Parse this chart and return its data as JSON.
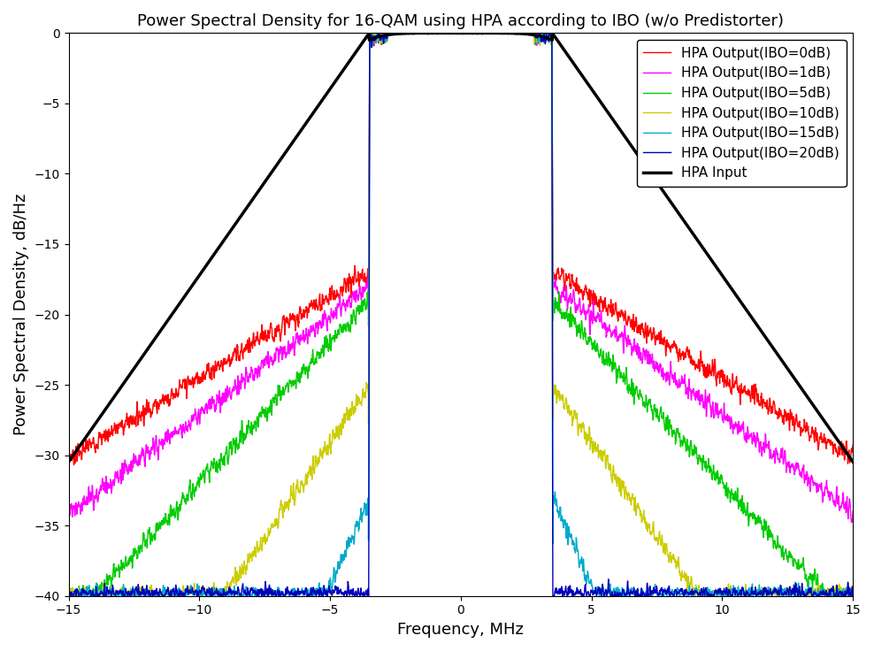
{
  "title": "Power Spectral Density for 16-QAM using HPA according to IBO (w/o Predistorter)",
  "xlabel": "Frequency, MHz",
  "ylabel": "Power Spectral Density, dB/Hz",
  "xlim": [
    -15,
    15
  ],
  "ylim": [
    -40,
    0
  ],
  "yticks": [
    0,
    -5,
    -10,
    -15,
    -20,
    -25,
    -30,
    -35,
    -40
  ],
  "xticks": [
    -15,
    -10,
    -5,
    0,
    5,
    10,
    15
  ],
  "colors": {
    "ibo0": "#ff0000",
    "ibo1": "#ff00ff",
    "ibo5": "#00cc00",
    "ibo10": "#cccc00",
    "ibo15": "#00aacc",
    "ibo20": "#0000bb",
    "input": "#000000"
  },
  "legend_labels": [
    "HPA Output(IBO=0dB)",
    "HPA Output(IBO=1dB)",
    "HPA Output(IBO=5dB)",
    "HPA Output(IBO=10dB)",
    "HPA Output(IBO=15dB)",
    "HPA Output(IBO=20dB)",
    "HPA Input"
  ],
  "ibos": [
    0,
    1,
    5,
    10,
    15,
    20
  ],
  "bw": 3.5,
  "noise_floor": -40,
  "seed": 7,
  "input_slope": 2.65,
  "input_curve_power": 1.8
}
